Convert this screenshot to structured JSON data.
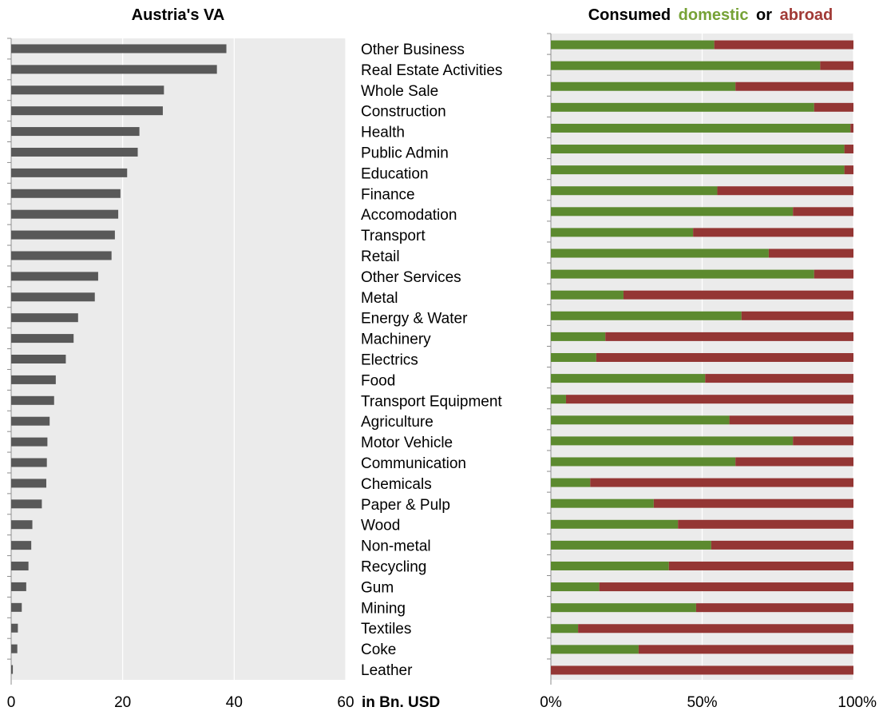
{
  "chart_data": [
    {
      "type": "bar",
      "orientation": "horizontal",
      "title": "Austria's VA",
      "xlabel": "in Bn. USD",
      "xlim": [
        0,
        60
      ],
      "xticks": [
        "0",
        "20",
        "40",
        "60"
      ],
      "grid": true,
      "color": "#595959",
      "categories": [
        "Other Business",
        "Real Estate Activities",
        "Whole Sale",
        "Construction",
        "Health",
        "Public Admin",
        "Education",
        "Finance",
        "Accomodation",
        "Transport",
        "Retail",
        "Other Services",
        "Metal",
        "Energy & Water",
        "Machinery",
        "Electrics",
        "Food",
        "Transport Equipment",
        "Agriculture",
        "Motor Vehicle",
        "Communication",
        "Chemicals",
        "Paper & Pulp",
        "Wood",
        "Non-metal",
        "Recycling",
        "Gum",
        "Mining",
        "Textiles",
        "Coke",
        "Leather"
      ],
      "values": [
        38.6,
        36.9,
        27.4,
        27.2,
        23.0,
        22.7,
        20.8,
        19.6,
        19.2,
        18.6,
        18.0,
        15.6,
        15.0,
        12.0,
        11.2,
        9.8,
        8.0,
        7.7,
        6.9,
        6.5,
        6.4,
        6.3,
        5.5,
        3.8,
        3.6,
        3.1,
        2.7,
        1.9,
        1.2,
        1.1,
        0.3
      ]
    },
    {
      "type": "bar",
      "orientation": "horizontal",
      "stacked": "percent",
      "title": {
        "prefix": "Consumed",
        "domestic": "domestic",
        "middle": "or",
        "abroad": "abroad"
      },
      "xticks": [
        "0%",
        "50%",
        "100%"
      ],
      "xlim": [
        0,
        1
      ],
      "grid": true,
      "series": [
        {
          "name": "domestic",
          "color": "#5c8a2f",
          "values": [
            0.54,
            0.89,
            0.61,
            0.87,
            0.99,
            0.97,
            0.97,
            0.55,
            0.8,
            0.47,
            0.72,
            0.87,
            0.24,
            0.63,
            0.18,
            0.15,
            0.51,
            0.05,
            0.59,
            0.8,
            0.61,
            0.13,
            0.34,
            0.42,
            0.53,
            0.39,
            0.16,
            0.48,
            0.09,
            0.29,
            0.0
          ]
        },
        {
          "name": "abroad",
          "color": "#943634",
          "values": [
            0.46,
            0.11,
            0.39,
            0.13,
            0.01,
            0.03,
            0.03,
            0.45,
            0.2,
            0.53,
            0.28,
            0.13,
            0.76,
            0.37,
            0.82,
            0.85,
            0.49,
            0.95,
            0.41,
            0.2,
            0.39,
            0.87,
            0.66,
            0.58,
            0.47,
            0.61,
            0.84,
            0.52,
            0.91,
            0.71,
            1.0
          ]
        }
      ]
    }
  ]
}
